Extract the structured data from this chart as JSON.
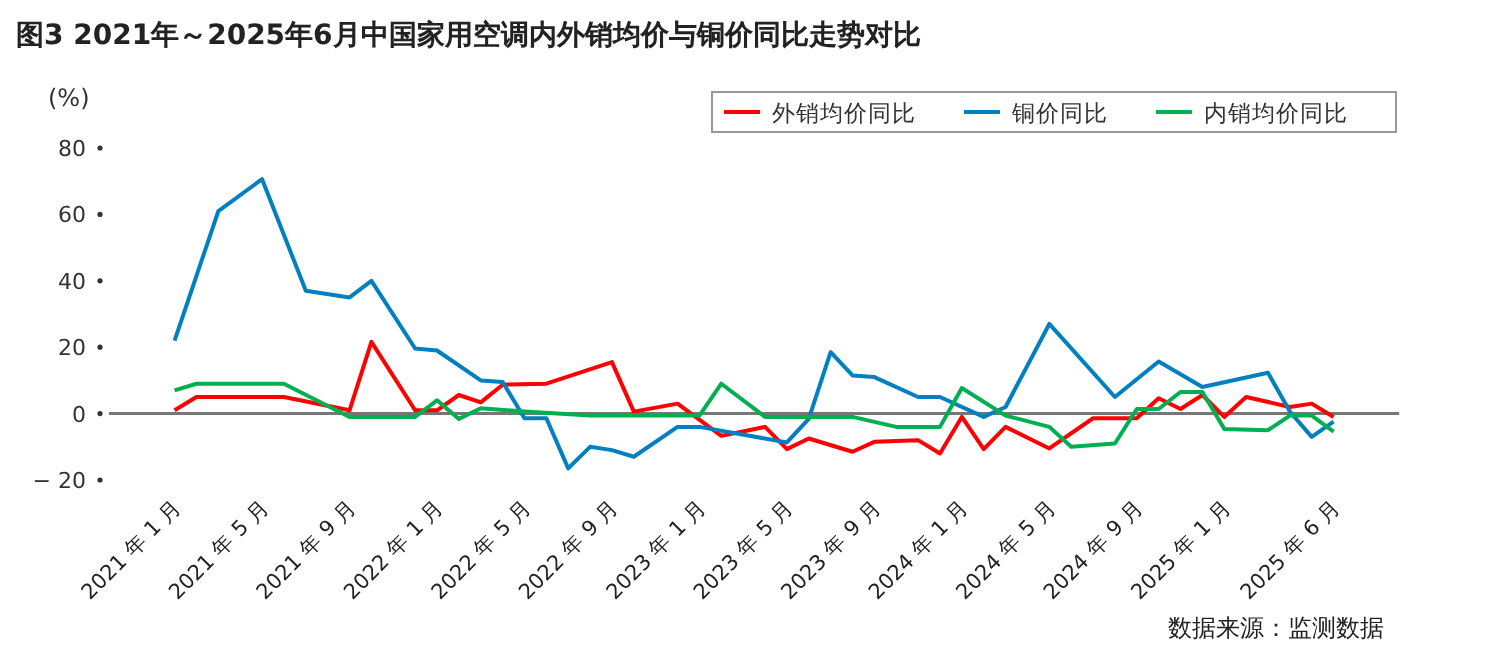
{
  "chart_data": {
    "type": "line",
    "title": "图3  2021年～2025年6月中国家用空调内外销均价与铜价同比走势对比",
    "ylabel": "(%)",
    "legend": "top right",
    "grid": false,
    "xlim": [
      "2020-10",
      "2025-09"
    ],
    "ylim": [
      -20,
      80
    ],
    "yticks": [
      {
        "value": -20,
        "label": "− 20"
      },
      0,
      20,
      40,
      60,
      80
    ],
    "xticks": [
      {
        "value": "2021-01",
        "label": "2021 年 1 月"
      },
      {
        "value": "2021-05",
        "label": "2021 年 5 月"
      },
      {
        "value": "2021-09",
        "label": "2021 年 9 月"
      },
      {
        "value": "2022-01",
        "label": "2022 年 1 月"
      },
      {
        "value": "2022-05",
        "label": "2022 年 5 月"
      },
      {
        "value": "2022-09",
        "label": "2022 年 9 月"
      },
      {
        "value": "2023-01",
        "label": "2023 年 1 月"
      },
      {
        "value": "2023-05",
        "label": "2023 年 5 月"
      },
      {
        "value": "2023-09",
        "label": "2023 年 9 月"
      },
      {
        "value": "2024-01",
        "label": "2024 年 1 月"
      },
      {
        "value": "2024-05",
        "label": "2024 年 5 月"
      },
      {
        "value": "2024-09",
        "label": "2024 年 9 月"
      },
      {
        "value": "2025-01",
        "label": "2025 年 1 月"
      },
      {
        "value": "2025-06",
        "label": "2025 年 6 月"
      }
    ],
    "annotations": [
      "数据来源：监测数据"
    ],
    "ref_lines": [
      {
        "axis": "y",
        "value": 0,
        "color": "#777777"
      }
    ],
    "series": [
      {
        "name": "外销均价同比",
        "color": "#ff0000",
        "x": [
          "2021-01",
          "2021-02",
          "2021-06",
          "2021-09",
          "2021-10",
          "2021-12",
          "2022-01",
          "2022-02",
          "2022-03",
          "2022-04",
          "2022-06",
          "2022-09",
          "2022-10",
          "2022-12",
          "2023-02",
          "2023-04",
          "2023-05",
          "2023-06",
          "2023-08",
          "2023-09",
          "2023-11",
          "2023-12",
          "2024-01",
          "2024-02",
          "2024-03",
          "2024-05",
          "2024-07",
          "2024-09",
          "2024-10",
          "2024-11",
          "2024-12",
          "2025-01",
          "2025-02",
          "2025-04",
          "2025-05",
          "2025-06"
        ],
        "values": [
          1,
          5,
          5,
          1,
          21.6,
          1,
          1,
          5.6,
          3.4,
          8.7,
          9,
          15.5,
          0.6,
          3,
          -6.7,
          -4,
          -10.7,
          -7.5,
          -11.5,
          -8.5,
          -8,
          -12,
          -1,
          -10.7,
          -4,
          -10.5,
          -1.4,
          -1.4,
          4.6,
          1.4,
          5.6,
          -1,
          5,
          2,
          3,
          -1
        ]
      },
      {
        "name": "铜价同比",
        "color": "#0080c0",
        "x": [
          "2021-01",
          "2021-03",
          "2021-05",
          "2021-07",
          "2021-09",
          "2021-10",
          "2021-12",
          "2022-01",
          "2022-03",
          "2022-04",
          "2022-05",
          "2022-06",
          "2022-07",
          "2022-08",
          "2022-09",
          "2022-10",
          "2022-12",
          "2023-01",
          "2023-05",
          "2023-06",
          "2023-07",
          "2023-08",
          "2023-09",
          "2023-11",
          "2023-12",
          "2024-02",
          "2024-03",
          "2024-05",
          "2024-08",
          "2024-10",
          "2024-12",
          "2025-03",
          "2025-04",
          "2025-05",
          "2025-06"
        ],
        "values": [
          22,
          61,
          70.6,
          37,
          35,
          40,
          19.6,
          19,
          10,
          9.5,
          -1.4,
          -1.4,
          -16.5,
          -10,
          -11,
          -13,
          -4,
          -4,
          -8.7,
          -1.6,
          18.5,
          11.5,
          11,
          5,
          5,
          -1,
          2,
          27,
          5,
          15.7,
          8,
          12.3,
          0.6,
          -7,
          -2.4
        ]
      },
      {
        "name": "内销均价同比",
        "color": "#00b050",
        "x": [
          "2021-01",
          "2021-02",
          "2021-06",
          "2021-09",
          "2021-12",
          "2022-01",
          "2022-02",
          "2022-03",
          "2022-05",
          "2022-08",
          "2023-01",
          "2023-02",
          "2023-04",
          "2023-08",
          "2023-10",
          "2023-12",
          "2024-01",
          "2024-03",
          "2024-05",
          "2024-06",
          "2024-08",
          "2024-09",
          "2024-10",
          "2024-11",
          "2024-12",
          "2025-01",
          "2025-03",
          "2025-04",
          "2025-05",
          "2025-06"
        ],
        "values": [
          7,
          9,
          9,
          -1,
          -1,
          4,
          -1.6,
          1.6,
          0.6,
          -0.6,
          -0.6,
          9,
          -1,
          -1,
          -4,
          -4,
          7.7,
          -0.6,
          -4,
          -10,
          -9,
          1.4,
          1.4,
          6.5,
          6.5,
          -4.6,
          -5,
          -0.6,
          -0.6,
          -5.4
        ]
      }
    ]
  }
}
